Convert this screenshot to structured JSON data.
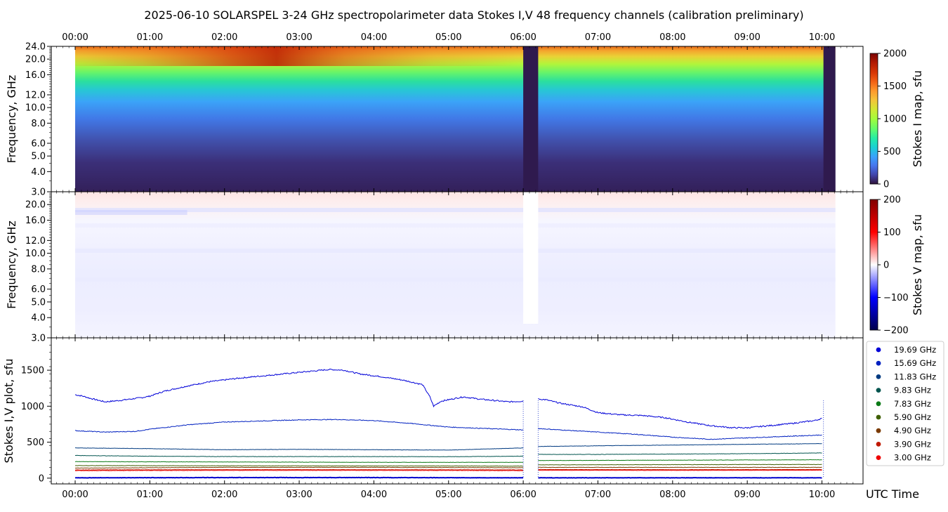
{
  "title": "2025-06-10  SOLARSPEL  3-24 GHz spectropolarimeter data   Stokes I,V   48 frequency channels   (calibration preliminary)",
  "time_ticks": [
    "00:00",
    "01:00",
    "02:00",
    "03:00",
    "04:00",
    "05:00",
    "06:00",
    "07:00",
    "08:00",
    "09:00",
    "10:00"
  ],
  "x_axis_label": "UTC Time",
  "chart_data": [
    {
      "type": "heatmap",
      "panel": "stokes-i-map",
      "ylabel": "Frequency, GHz",
      "y_ticks": [
        "3.0",
        "4.0",
        "5.0",
        "6.0",
        "8.0",
        "10.0",
        "12.0",
        "16.0",
        "20.0",
        "24.0"
      ],
      "y_tick_values": [
        3,
        4,
        5,
        6,
        8,
        10,
        12,
        16,
        20,
        24
      ],
      "xlim_hours": [
        -0.32,
        10.55
      ],
      "data_range_hours": [
        0.0,
        10.18
      ],
      "gap_hours": [
        [
          6.0,
          6.2
        ],
        [
          10.02,
          10.18
        ]
      ],
      "colorbar_label": "Stokes I map, sfu",
      "colorbar_ticks": [
        "0",
        "500",
        "1000",
        "1500",
        "2000"
      ],
      "colorbar_range": [
        0,
        2000
      ],
      "colormap": "turbo"
    },
    {
      "type": "heatmap",
      "panel": "stokes-v-map",
      "ylabel": "Frequency, GHz",
      "y_ticks": [
        "3.0",
        "4.0",
        "5.0",
        "6.0",
        "8.0",
        "10.0",
        "12.0",
        "16.0",
        "20.0"
      ],
      "y_tick_values": [
        3,
        4,
        5,
        6,
        8,
        10,
        12,
        16,
        20
      ],
      "colorbar_label": "Stokes V map, sfu",
      "colorbar_ticks": [
        "200",
        "100",
        "0",
        "−100",
        "−200"
      ],
      "colorbar_range": [
        -200,
        200
      ],
      "colormap": "seismic"
    },
    {
      "type": "line",
      "panel": "stokes-iv-plot",
      "ylabel": "Stokes I,V plot, sfu",
      "y_ticks": [
        "0",
        "500",
        "1000",
        "1500"
      ],
      "y_tick_values": [
        0,
        500,
        1000,
        1500
      ],
      "ylim": [
        -80,
        1950
      ],
      "x_unit": "hours UTC",
      "series": [
        {
          "name": "19.69 GHz",
          "color": "#0000d8",
          "x": [
            0,
            0.1,
            0.2,
            0.4,
            0.6,
            0.9,
            1.0,
            1.2,
            1.5,
            1.8,
            2.2,
            2.6,
            3.0,
            3.4,
            3.6,
            3.8,
            4.1,
            4.4,
            4.65,
            4.75,
            4.8,
            4.9,
            5.0,
            5.2,
            5.4,
            5.6,
            5.8,
            6.0,
            6.2,
            6.3,
            6.5,
            6.8,
            7.0,
            7.3,
            7.6,
            7.9,
            8.2,
            8.5,
            8.8,
            9.0,
            9.3,
            9.6,
            9.9,
            10.0
          ],
          "y": [
            1160,
            1140,
            1110,
            1060,
            1080,
            1120,
            1140,
            1210,
            1280,
            1340,
            1390,
            1430,
            1470,
            1510,
            1500,
            1450,
            1410,
            1360,
            1300,
            1130,
            1000,
            1070,
            1090,
            1130,
            1100,
            1080,
            1060,
            1070,
            1100,
            1090,
            1040,
            990,
            910,
            880,
            870,
            840,
            780,
            730,
            700,
            700,
            730,
            760,
            800,
            830
          ]
        },
        {
          "name": "15.69 GHz",
          "color": "#0020c0",
          "x": [
            0,
            0.4,
            0.8,
            1.0,
            1.5,
            2.0,
            2.5,
            3.0,
            3.5,
            4.0,
            4.5,
            5.0,
            5.5,
            6.0,
            6.2,
            6.5,
            7.0,
            7.5,
            8.0,
            8.5,
            9.0,
            9.5,
            10.0
          ],
          "y": [
            660,
            640,
            650,
            680,
            740,
            780,
            795,
            810,
            815,
            800,
            760,
            710,
            690,
            670,
            690,
            670,
            640,
            610,
            570,
            540,
            560,
            580,
            600
          ]
        },
        {
          "name": "11.83 GHz",
          "color": "#003a80",
          "x": [
            0,
            1,
            2,
            3,
            4,
            5,
            6,
            6.2,
            7,
            8,
            9,
            10
          ],
          "y": [
            420,
            410,
            395,
            400,
            395,
            390,
            420,
            440,
            450,
            460,
            470,
            480
          ]
        },
        {
          "name": "9.83 GHz",
          "color": "#00544e",
          "x": [
            0,
            1,
            2,
            3,
            4,
            5,
            6,
            6.2,
            7,
            8,
            9,
            10
          ],
          "y": [
            315,
            305,
            300,
            300,
            300,
            298,
            305,
            330,
            330,
            335,
            340,
            350
          ]
        },
        {
          "name": "7.83 GHz",
          "color": "#0b7a16",
          "x": [
            0,
            2,
            4,
            6,
            6.2,
            8,
            10
          ],
          "y": [
            230,
            225,
            220,
            220,
            245,
            250,
            255
          ]
        },
        {
          "name": "5.90 GHz",
          "color": "#3f5f00",
          "x": [
            0,
            2,
            4,
            6,
            6.2,
            8,
            10
          ],
          "y": [
            175,
            172,
            170,
            168,
            185,
            188,
            190
          ]
        },
        {
          "name": "4.90 GHz",
          "color": "#7a3a00",
          "x": [
            0,
            2,
            4,
            6,
            6.2,
            8,
            10
          ],
          "y": [
            140,
            150,
            150,
            145,
            150,
            150,
            150
          ]
        },
        {
          "name": "3.90 GHz",
          "color": "#c01800",
          "x": [
            0,
            2,
            4,
            6,
            6.2,
            8,
            10
          ],
          "y": [
            115,
            118,
            118,
            115,
            120,
            118,
            120
          ]
        },
        {
          "name": "3.00 GHz",
          "color": "#ee0000",
          "x": [
            0,
            2,
            4,
            6,
            6.2,
            8,
            10
          ],
          "y": [
            105,
            108,
            108,
            105,
            110,
            108,
            110
          ]
        },
        {
          "name": "",
          "color": "#0000cc",
          "role": "stokes-v",
          "x": [
            0,
            2,
            4,
            6,
            6.2,
            8,
            10
          ],
          "y": [
            5,
            8,
            8,
            5,
            5,
            5,
            5
          ]
        }
      ]
    }
  ],
  "legend": {
    "placement": "right",
    "entries": [
      "19.69 GHz",
      "15.69 GHz",
      "11.83 GHz",
      "9.83 GHz",
      "7.83 GHz",
      "5.90 GHz",
      "4.90 GHz",
      "3.90 GHz",
      "3.00 GHz"
    ],
    "colors": [
      "#0000d8",
      "#0020c0",
      "#003a80",
      "#00544e",
      "#0b7a16",
      "#3f5f00",
      "#7a3a00",
      "#c01800",
      "#ee0000"
    ]
  }
}
